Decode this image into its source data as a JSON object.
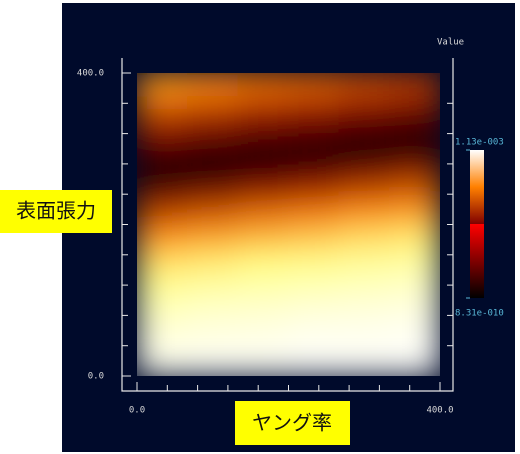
{
  "chart_data": {
    "type": "heatmap",
    "xlabel": "ヤング率",
    "ylabel": "表面張力",
    "xlim": [
      0,
      400
    ],
    "ylim": [
      0,
      400
    ],
    "xticks": [
      {
        "value": 0,
        "label": "0.0"
      },
      {
        "value": 400,
        "label": "400.0"
      }
    ],
    "yticks": [
      {
        "value": 0,
        "label": "0.0"
      },
      {
        "value": 400,
        "label": "400.0"
      }
    ],
    "z": [
      [
        0.0011,
        0.00111,
        0.00111,
        0.00112,
        0.00112,
        0.00112
      ],
      [
        0.00106,
        0.00107,
        0.00108,
        0.0011,
        0.0011,
        0.00111
      ],
      [
        0.00099,
        0.00102,
        0.00103,
        0.00105,
        0.00106,
        0.00107
      ],
      [
        0.0009,
        0.00093,
        0.00095,
        0.00097,
        0.00099,
        0.00101
      ],
      [
        0.00078,
        0.00081,
        0.00085,
        0.00087,
        0.0009,
        0.00092
      ],
      [
        0.0006,
        0.00064,
        0.00068,
        0.00072,
        0.00077,
        0.0008
      ],
      [
        0.00041,
        0.00046,
        0.00051,
        0.00054,
        0.00059,
        0.00062
      ],
      [
        0.00012,
        0.00019,
        0.00028,
        0.00033,
        0.0004,
        0.00045
      ],
      [
        8e-05,
        3e-05,
        1e-05,
        6e-05,
        0.00011,
        0.00018
      ],
      [
        0.00026,
        0.00021,
        0.00017,
        0.00014,
        9e-05,
        5e-05
      ],
      [
        0.00044,
        0.0004,
        0.00035,
        0.00032,
        0.00027,
        0.00023
      ],
      [
        0.00062,
        0.00058,
        0.00053,
        0.0005,
        0.00045,
        0.00041
      ]
    ],
    "colorbar": {
      "title": "Value",
      "lim": [
        8.31e-10,
        0.00113
      ],
      "ticks": [
        {
          "value": 0.00113,
          "label": "1.13e-003"
        },
        {
          "value": 8.31e-10,
          "label": "8.31e-010"
        }
      ]
    },
    "colormap": "afmhot"
  }
}
